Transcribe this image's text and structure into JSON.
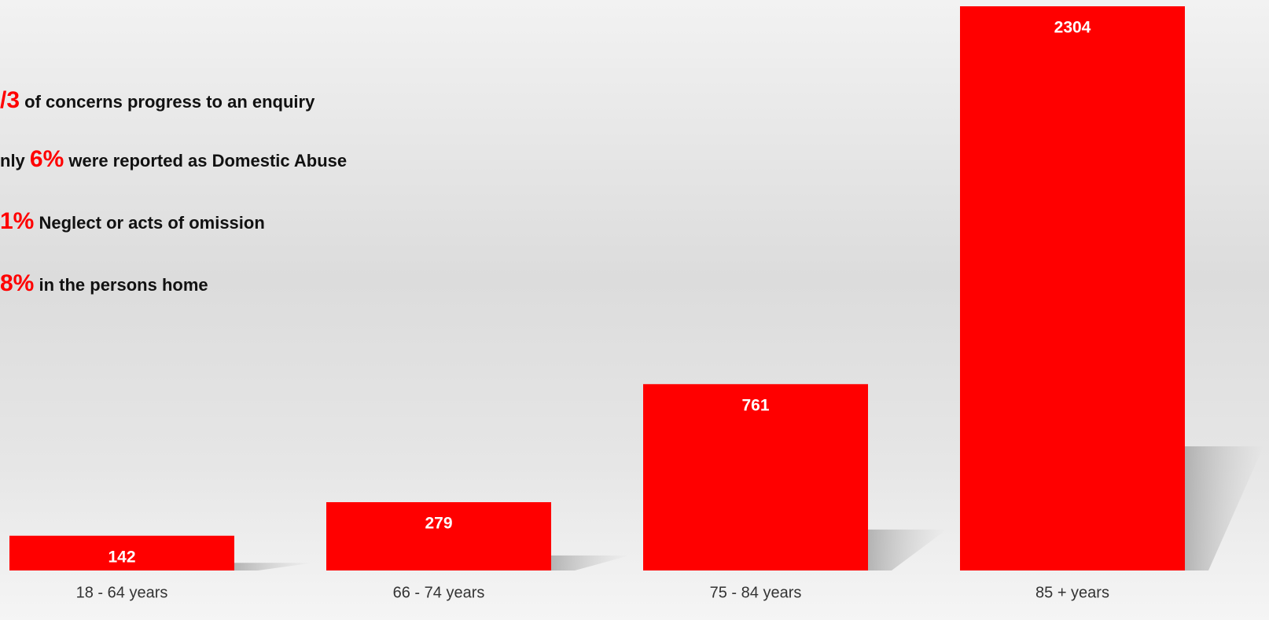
{
  "chart_data": {
    "type": "bar",
    "categories": [
      "18 - 64 years",
      "66 - 74 years",
      "75 - 84 years",
      "85 + years"
    ],
    "values": [
      142,
      279,
      761,
      2304
    ],
    "color": "#ff0000",
    "annotations": [
      {
        "highlight": "/3",
        "text": "of concerns progress to an enquiry"
      },
      {
        "prefix": "nly",
        "highlight": "6%",
        "text": "were reported as Domestic Abuse"
      },
      {
        "highlight": "1%",
        "text": "Neglect or acts of omission"
      },
      {
        "highlight": "8%",
        "text": "in the persons home"
      }
    ]
  }
}
